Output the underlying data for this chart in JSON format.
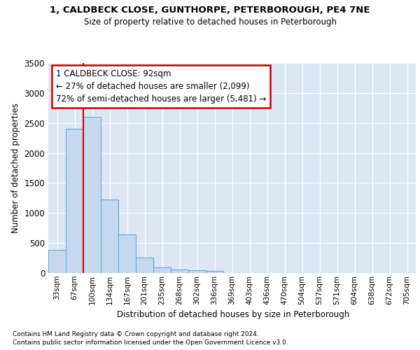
{
  "title_line1": "1, CALDBECK CLOSE, GUNTHORPE, PETERBOROUGH, PE4 7NE",
  "title_line2": "Size of property relative to detached houses in Peterborough",
  "xlabel": "Distribution of detached houses by size in Peterborough",
  "ylabel": "Number of detached properties",
  "footnote1": "Contains HM Land Registry data © Crown copyright and database right 2024.",
  "footnote2": "Contains public sector information licensed under the Open Government Licence v3.0.",
  "bar_labels": [
    "33sqm",
    "67sqm",
    "100sqm",
    "134sqm",
    "167sqm",
    "201sqm",
    "235sqm",
    "268sqm",
    "302sqm",
    "336sqm",
    "369sqm",
    "403sqm",
    "436sqm",
    "470sqm",
    "504sqm",
    "537sqm",
    "571sqm",
    "604sqm",
    "638sqm",
    "672sqm",
    "705sqm"
  ],
  "bar_values": [
    390,
    2400,
    2600,
    1230,
    640,
    260,
    90,
    55,
    50,
    40,
    0,
    0,
    0,
    0,
    0,
    0,
    0,
    0,
    0,
    0,
    0
  ],
  "bar_color": "#c5d8f0",
  "bar_edge_color": "#6aaad4",
  "annotation_text": "1 CALDBECK CLOSE: 92sqm\n← 27% of detached houses are smaller (2,099)\n72% of semi-detached houses are larger (5,481) →",
  "annotation_box_color": "#ffffff",
  "annotation_box_edge": "#cc0000",
  "property_line_color": "#cc0000",
  "ylim": [
    0,
    3500
  ],
  "yticks": [
    0,
    500,
    1000,
    1500,
    2000,
    2500,
    3000,
    3500
  ],
  "background_color": "#dce6f5",
  "grid_color": "#ffffff"
}
